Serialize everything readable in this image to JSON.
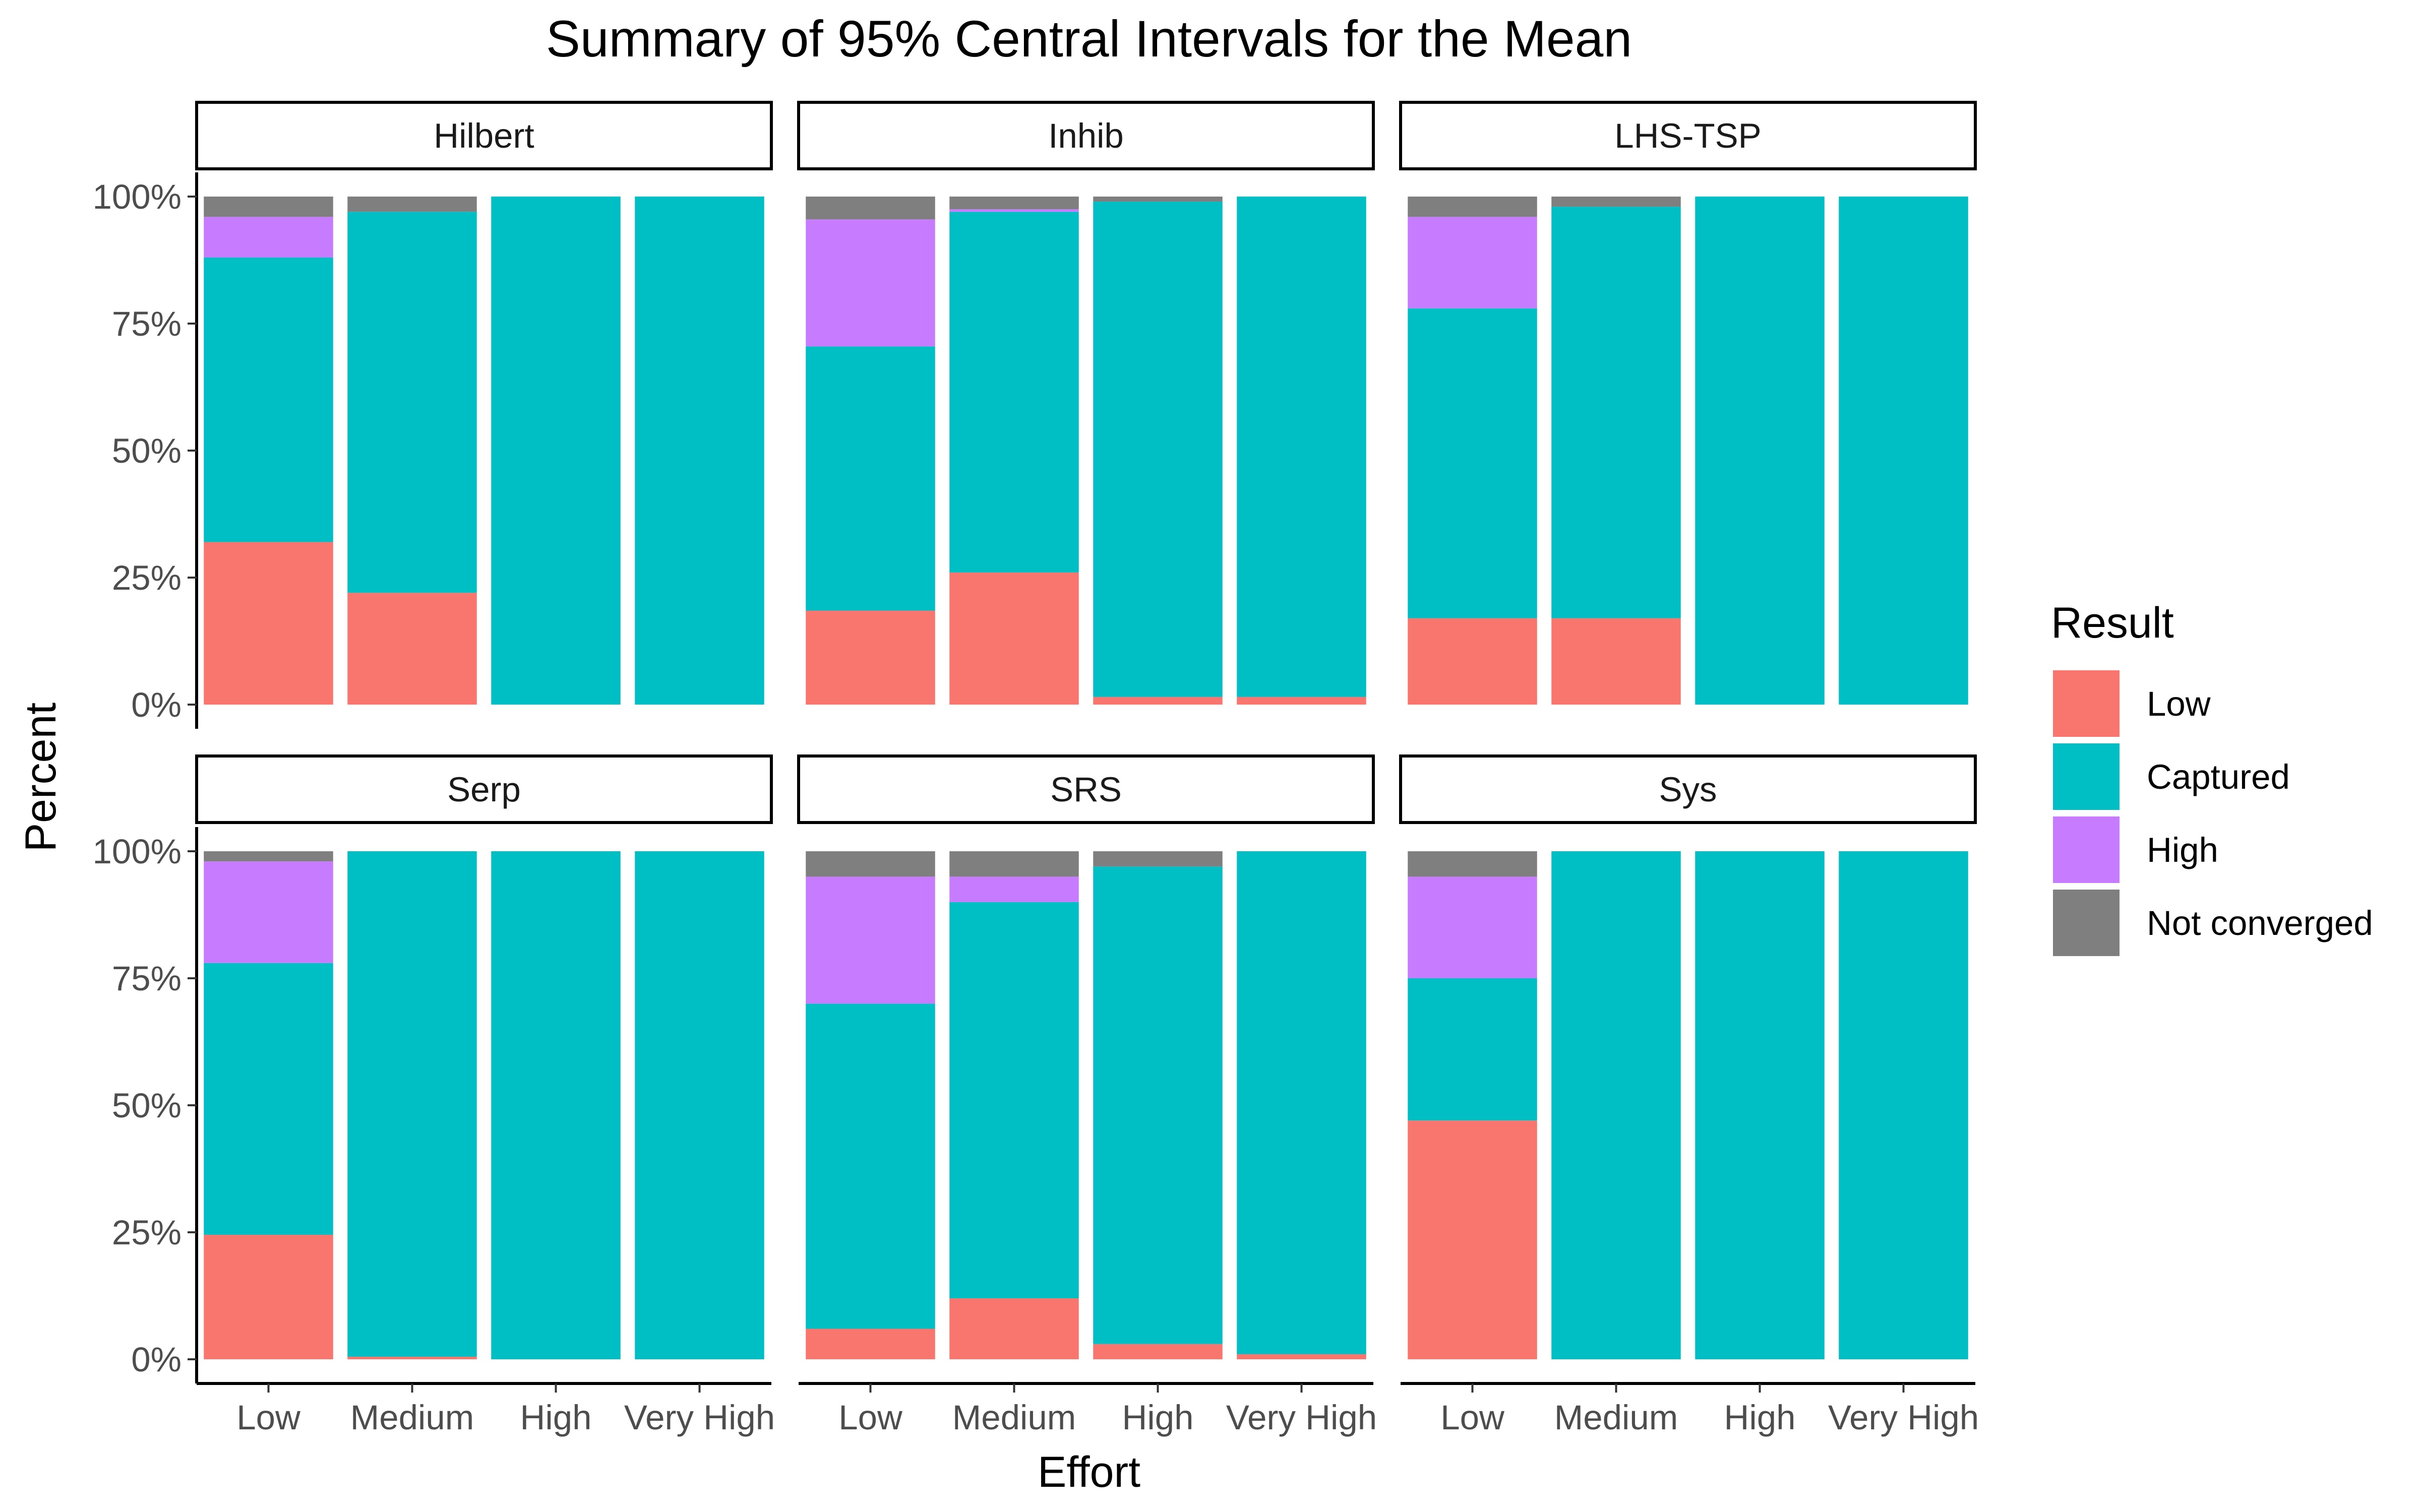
{
  "chart_data": {
    "type": "bar",
    "stacked": true,
    "title": "Summary of 95% Central Intervals for the Mean",
    "xlabel": "Effort",
    "ylabel": "Percent",
    "ylim": [
      0,
      100
    ],
    "y_ticks": [
      "0%",
      "25%",
      "50%",
      "75%",
      "100%"
    ],
    "y_tick_values": [
      0,
      25,
      50,
      75,
      100
    ],
    "categories": [
      "Low",
      "Medium",
      "High",
      "Very High"
    ],
    "legend": {
      "title": "Result",
      "placement": "right",
      "entries": [
        "Low",
        "Captured",
        "High",
        "Not converged"
      ]
    },
    "colors": {
      "Low": "#F8766D",
      "Captured": "#00BFC4",
      "High": "#C77CFF",
      "Not converged": "#7F7F7F"
    },
    "facets": [
      {
        "name": "Hilbert",
        "series": [
          {
            "name": "Low",
            "values": [
              32,
              22,
              0,
              0
            ]
          },
          {
            "name": "Captured",
            "values": [
              56,
              75,
              100,
              100
            ]
          },
          {
            "name": "High",
            "values": [
              8,
              0,
              0,
              0
            ]
          },
          {
            "name": "Not converged",
            "values": [
              4,
              3,
              0,
              0
            ]
          }
        ]
      },
      {
        "name": "Inhib",
        "series": [
          {
            "name": "Low",
            "values": [
              18.5,
              26,
              1.5,
              1.5
            ]
          },
          {
            "name": "Captured",
            "values": [
              52,
              71,
              97.5,
              98.5
            ]
          },
          {
            "name": "High",
            "values": [
              25,
              0.5,
              0,
              0
            ]
          },
          {
            "name": "Not converged",
            "values": [
              4.5,
              2.5,
              1,
              0
            ]
          }
        ]
      },
      {
        "name": "LHS-TSP",
        "series": [
          {
            "name": "Low",
            "values": [
              17,
              17,
              0,
              0
            ]
          },
          {
            "name": "Captured",
            "values": [
              61,
              81,
              100,
              100
            ]
          },
          {
            "name": "High",
            "values": [
              18,
              0,
              0,
              0
            ]
          },
          {
            "name": "Not converged",
            "values": [
              4,
              2,
              0,
              0
            ]
          }
        ]
      },
      {
        "name": "Serp",
        "series": [
          {
            "name": "Low",
            "values": [
              24.5,
              0.5,
              0,
              0
            ]
          },
          {
            "name": "Captured",
            "values": [
              53.5,
              99.5,
              100,
              100
            ]
          },
          {
            "name": "High",
            "values": [
              20,
              0,
              0,
              0
            ]
          },
          {
            "name": "Not converged",
            "values": [
              2,
              0,
              0,
              0
            ]
          }
        ]
      },
      {
        "name": "SRS",
        "series": [
          {
            "name": "Low",
            "values": [
              6,
              12,
              3,
              1
            ]
          },
          {
            "name": "Captured",
            "values": [
              64,
              78,
              94,
              99
            ]
          },
          {
            "name": "High",
            "values": [
              25,
              5,
              0,
              0
            ]
          },
          {
            "name": "Not converged",
            "values": [
              5,
              5,
              3,
              0
            ]
          }
        ]
      },
      {
        "name": "Sys",
        "series": [
          {
            "name": "Low",
            "values": [
              47,
              0,
              0,
              0
            ]
          },
          {
            "name": "Captured",
            "values": [
              28,
              100,
              100,
              100
            ]
          },
          {
            "name": "High",
            "values": [
              20,
              0,
              0,
              0
            ]
          },
          {
            "name": "Not converged",
            "values": [
              5,
              0,
              0,
              0
            ]
          }
        ]
      }
    ]
  }
}
